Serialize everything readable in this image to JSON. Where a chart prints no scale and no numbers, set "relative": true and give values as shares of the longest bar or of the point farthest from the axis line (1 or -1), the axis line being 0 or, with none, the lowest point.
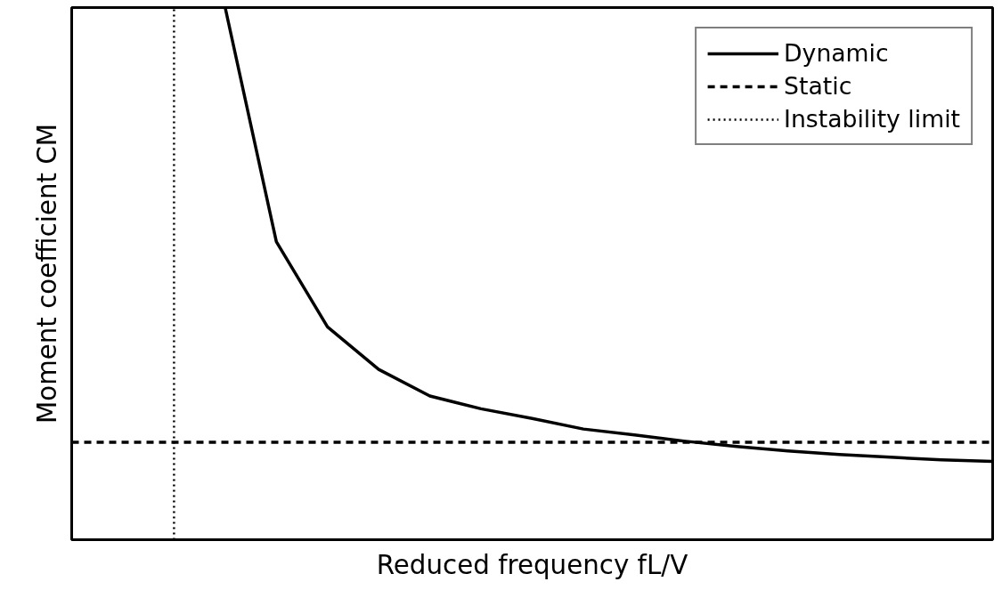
{
  "chart_data": {
    "type": "line",
    "relative": true,
    "xlabel": "Reduced frequency fL/V",
    "ylabel": "Moment coefficient CM",
    "categories": [
      null,
      null,
      null,
      null,
      null,
      null,
      null,
      null,
      null,
      null,
      null,
      null,
      null,
      null,
      null,
      null,
      null,
      null,
      null
    ],
    "series": [
      {
        "name": "Dynamic",
        "color": "#000000",
        "line_style": "solid",
        "values": [
          null,
          null,
          null,
          1.0,
          0.56,
          0.4,
          0.32,
          0.27,
          0.246,
          0.228,
          0.208,
          0.197,
          0.185,
          0.175,
          0.167,
          0.16,
          0.155,
          0.15,
          0.147
        ]
      },
      {
        "name": "Static",
        "color": "#000000",
        "line_style": "dashed",
        "values": [
          0.183,
          0.183,
          0.183,
          0.183,
          0.183,
          0.183,
          0.183,
          0.183,
          0.183,
          0.183,
          0.183,
          0.183,
          0.183,
          0.183,
          0.183,
          0.183,
          0.183,
          0.183,
          0.183
        ]
      }
    ],
    "annotations": [
      "Instability limit"
    ],
    "legend": "top right",
    "grid": false,
    "marker": "none"
  }
}
